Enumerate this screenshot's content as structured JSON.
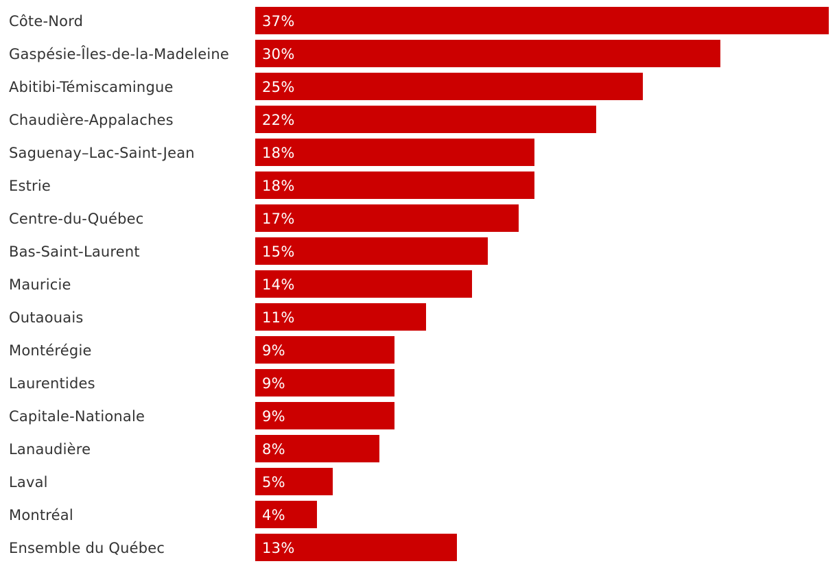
{
  "chart_data": {
    "type": "bar",
    "orientation": "horizontal",
    "title": "",
    "xlabel": "",
    "ylabel": "",
    "xlim": [
      0,
      37
    ],
    "grid": false,
    "bar_color": "#cc0000",
    "label_color": "#333333",
    "value_label_color": "#ffffff",
    "categories": [
      "Côte-Nord",
      "Gaspésie-Îles-de-la-Madeleine",
      "Abitibi-Témiscamingue",
      "Chaudière-Appalaches",
      "Saguenay–Lac-Saint-Jean",
      "Estrie",
      "Centre-du-Québec",
      "Bas-Saint-Laurent",
      "Mauricie",
      "Outaouais",
      "Montérégie",
      "Laurentides",
      "Capitale-Nationale",
      "Lanaudière",
      "Laval",
      "Montréal",
      "Ensemble du Québec"
    ],
    "values": [
      37,
      30,
      25,
      22,
      18,
      18,
      17,
      15,
      14,
      11,
      9,
      9,
      9,
      8,
      5,
      4,
      13
    ],
    "value_labels": [
      "37%",
      "30%",
      "25%",
      "22%",
      "18%",
      "18%",
      "17%",
      "15%",
      "14%",
      "11%",
      "9%",
      "9%",
      "9%",
      "8%",
      "5%",
      "4%",
      "13%"
    ]
  }
}
